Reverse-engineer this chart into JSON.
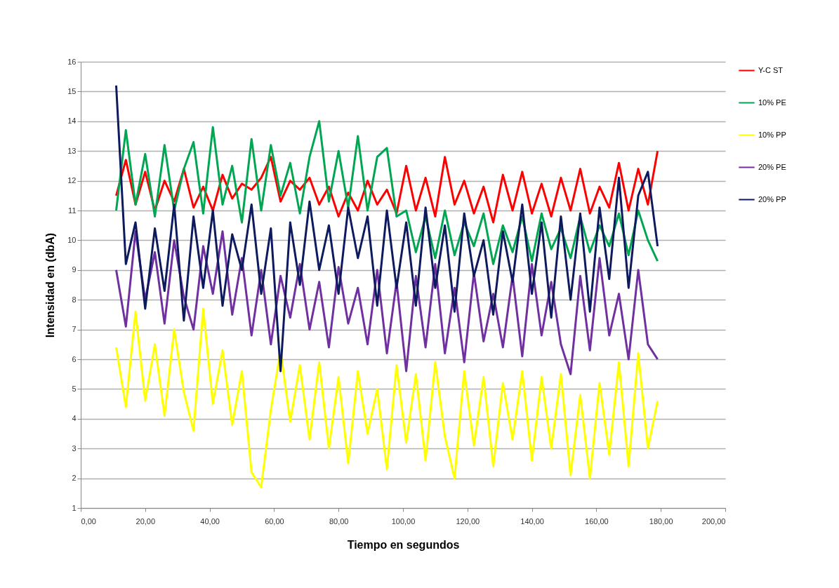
{
  "chart_data": {
    "type": "line",
    "xlabel": "Tiempo en segundos",
    "ylabel": "Intensidad en (dbA)",
    "x": [
      11,
      14,
      17,
      20,
      23,
      26,
      29,
      32,
      35,
      38,
      41,
      44,
      47,
      50,
      53,
      56,
      59,
      62,
      65,
      68,
      71,
      74,
      77,
      80,
      83,
      86,
      89,
      92,
      95,
      98,
      101,
      104,
      107,
      110,
      113,
      116,
      119,
      122,
      125,
      128,
      131,
      134,
      137,
      140,
      143,
      146,
      149,
      152,
      155,
      158,
      161,
      164,
      167,
      170,
      173,
      176,
      179
    ],
    "series": [
      {
        "name": "Y-C ST",
        "color": "#ff0000",
        "values": [
          11.5,
          12.7,
          11.2,
          12.3,
          11.0,
          12.0,
          11.3,
          12.4,
          11.1,
          11.8,
          11.0,
          12.2,
          11.4,
          11.9,
          11.7,
          12.1,
          12.8,
          11.3,
          12.0,
          11.7,
          12.1,
          11.2,
          11.8,
          10.8,
          11.6,
          11.0,
          12.0,
          11.2,
          11.7,
          10.9,
          12.5,
          11.0,
          12.1,
          10.8,
          12.8,
          11.2,
          12.0,
          10.9,
          11.8,
          10.6,
          12.2,
          11.0,
          12.3,
          10.9,
          11.9,
          10.8,
          12.1,
          11.0,
          12.4,
          10.9,
          11.8,
          11.1,
          12.6,
          11.0,
          12.4,
          11.2,
          13.0
        ]
      },
      {
        "name": "10% PE",
        "color": "#00a651",
        "values": [
          11.0,
          13.7,
          11.2,
          12.9,
          10.8,
          13.2,
          11.0,
          12.4,
          13.3,
          10.9,
          13.8,
          11.2,
          12.5,
          10.6,
          13.4,
          11.0,
          13.2,
          11.5,
          12.6,
          10.9,
          12.8,
          14.0,
          11.3,
          13.0,
          11.1,
          13.5,
          11.0,
          12.8,
          13.1,
          10.8,
          11.0,
          9.6,
          10.8,
          9.4,
          11.0,
          9.5,
          10.6,
          9.8,
          10.9,
          9.2,
          10.5,
          9.6,
          10.8,
          9.3,
          10.9,
          9.7,
          10.4,
          9.4,
          10.8,
          9.6,
          10.5,
          9.8,
          10.9,
          9.5,
          11.0,
          10.0,
          9.3
        ]
      },
      {
        "name": "10% PP",
        "color": "#ffff00",
        "values": [
          6.4,
          4.4,
          7.6,
          4.6,
          6.5,
          4.1,
          7.0,
          4.9,
          3.6,
          7.7,
          4.5,
          6.3,
          3.8,
          5.6,
          2.2,
          1.7,
          4.3,
          6.3,
          3.9,
          5.8,
          3.3,
          5.9,
          3.0,
          5.4,
          2.5,
          5.6,
          3.5,
          5.0,
          2.3,
          5.8,
          3.2,
          5.5,
          2.6,
          5.9,
          3.4,
          2.0,
          5.6,
          3.1,
          5.4,
          2.4,
          5.2,
          3.3,
          5.6,
          2.6,
          5.4,
          3.0,
          5.5,
          2.1,
          4.8,
          2.0,
          5.2,
          2.8,
          5.9,
          2.4,
          6.2,
          3.0,
          4.6
        ]
      },
      {
        "name": "20% PE",
        "color": "#7030a0",
        "values": [
          9.0,
          7.1,
          10.3,
          8.0,
          9.6,
          7.2,
          10.0,
          8.1,
          7.0,
          9.8,
          8.2,
          10.3,
          7.5,
          9.4,
          6.8,
          9.0,
          6.5,
          8.8,
          7.4,
          9.2,
          7.0,
          8.6,
          6.4,
          9.1,
          7.2,
          8.4,
          6.5,
          9.0,
          6.2,
          8.6,
          5.6,
          8.8,
          6.4,
          9.2,
          6.2,
          8.4,
          5.9,
          8.9,
          6.6,
          8.2,
          6.4,
          8.8,
          6.1,
          9.2,
          6.8,
          8.6,
          6.5,
          5.5,
          8.8,
          6.3,
          9.4,
          6.8,
          8.2,
          6.0,
          9.0,
          6.5,
          6.0
        ]
      },
      {
        "name": "20% PP",
        "color": "#0d1a5e",
        "values": [
          15.2,
          9.2,
          10.6,
          7.7,
          10.4,
          8.3,
          11.2,
          7.3,
          10.8,
          8.4,
          11.0,
          7.8,
          10.2,
          9.0,
          11.2,
          8.2,
          10.4,
          5.6,
          10.6,
          8.5,
          11.3,
          9.0,
          10.5,
          8.2,
          11.1,
          9.4,
          10.8,
          7.8,
          11.0,
          8.4,
          10.6,
          7.8,
          11.1,
          8.4,
          10.5,
          7.6,
          10.9,
          8.8,
          10.0,
          7.5,
          10.3,
          8.6,
          11.2,
          8.2,
          10.6,
          7.4,
          10.8,
          8.0,
          10.9,
          7.6,
          11.1,
          8.7,
          12.1,
          8.4,
          11.5,
          12.3,
          9.8
        ]
      }
    ],
    "xlim": [
      0,
      200
    ],
    "xticks": [
      {
        "value": 0,
        "label": "0,00"
      },
      {
        "value": 20,
        "label": "20,00"
      },
      {
        "value": 40,
        "label": "40,00"
      },
      {
        "value": 60,
        "label": "60,00"
      },
      {
        "value": 80,
        "label": "80,00"
      },
      {
        "value": 100,
        "label": "100,00"
      },
      {
        "value": 120,
        "label": "120,00"
      },
      {
        "value": 140,
        "label": "140,00"
      },
      {
        "value": 160,
        "label": "160,00"
      },
      {
        "value": 180,
        "label": "180,00"
      },
      {
        "value": 200,
        "label": "200,00"
      }
    ],
    "ylim": [
      1,
      16
    ],
    "yticks": [
      1,
      2,
      3,
      4,
      5,
      6,
      7,
      8,
      9,
      10,
      11,
      12,
      13,
      14,
      15,
      16
    ],
    "grid": "y",
    "legend": "right",
    "marker": "none",
    "line_style": "solid"
  }
}
